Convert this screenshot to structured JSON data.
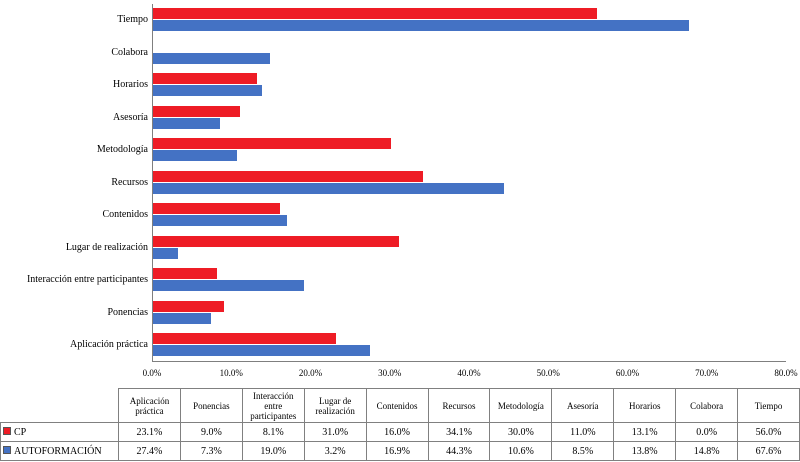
{
  "chart_data": {
    "type": "bar",
    "orientation": "horizontal",
    "title": "",
    "xlabel": "",
    "ylabel": "",
    "xlim": [
      0,
      80
    ],
    "x_ticks": [
      "0.0%",
      "10.0%",
      "20.0%",
      "30.0%",
      "40.0%",
      "50.0%",
      "60.0%",
      "70.0%",
      "80.0%"
    ],
    "grid": false,
    "legend_position": "table-left",
    "categories_top_to_bottom": [
      "Tiempo",
      "Colabora",
      "Horarios",
      "Asesoría",
      "Metodología",
      "Recursos",
      "Contenidos",
      "Lugar de realización",
      "Interacción entre participantes",
      "Ponencias",
      "Aplicación práctica"
    ],
    "series": [
      {
        "name": "CP",
        "color": "#ee1c25",
        "values": [
          56.0,
          0.0,
          13.1,
          11.0,
          30.0,
          34.1,
          16.0,
          31.0,
          8.1,
          9.0,
          23.1
        ]
      },
      {
        "name": "AUTOFORMACIÓN",
        "color": "#4472c4",
        "values": [
          67.6,
          14.8,
          13.8,
          8.5,
          10.6,
          44.3,
          16.9,
          3.2,
          19.0,
          7.3,
          27.4
        ]
      }
    ]
  },
  "table": {
    "columns": [
      "Aplicación práctica",
      "Ponencias",
      "Interacción entre participantes",
      "Lugar de realización",
      "Contenidos",
      "Recursos",
      "Metodología",
      "Asesoría",
      "Horarios",
      "Colabora",
      "Tiempo"
    ],
    "rows": [
      {
        "label": "CP",
        "values": [
          "23.1%",
          "9.0%",
          "8.1%",
          "31.0%",
          "16.0%",
          "34.1%",
          "30.0%",
          "11.0%",
          "13.1%",
          "0.0%",
          "56.0%"
        ]
      },
      {
        "label": "AUTOFORMACIÓN",
        "values": [
          "27.4%",
          "7.3%",
          "19.0%",
          "3.2%",
          "16.9%",
          "44.3%",
          "10.6%",
          "8.5%",
          "13.8%",
          "14.8%",
          "67.6%"
        ]
      }
    ]
  }
}
